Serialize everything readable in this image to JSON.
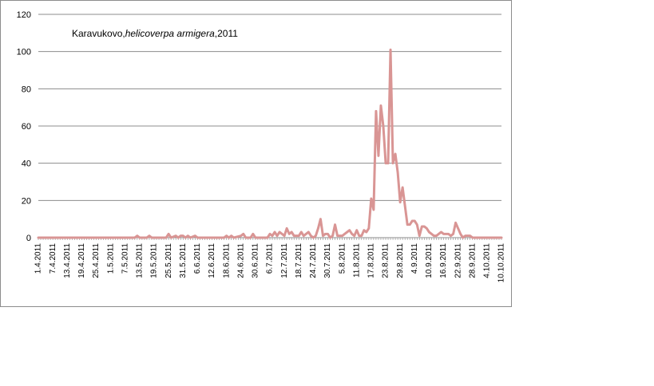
{
  "chart_data": {
    "type": "line",
    "title": {
      "location": "Karavukovo,",
      "species": "helicoverpa armigera",
      "year_suffix": ",2011"
    },
    "xlabel": "",
    "ylabel": "",
    "ylim": [
      0,
      120
    ],
    "yticks": [
      0,
      20,
      40,
      60,
      80,
      100,
      120
    ],
    "grid": true,
    "legend": "none",
    "series_color": "#d99594",
    "x_start": "2011-04-01",
    "x_end": "2011-10-10",
    "x_tick_labels": [
      "1.4.2011",
      "7.4.2011",
      "13.4.2011",
      "19.4.2011",
      "25.4.2011",
      "1.5.2011",
      "7.5.2011",
      "13.5.2011",
      "19.5.2011",
      "25.5.2011",
      "31.5.2011",
      "6.6.2011",
      "12.6.2011",
      "18.6.2011",
      "24.6.2011",
      "30.6.2011",
      "6.7.2011",
      "12.7.2011",
      "18.7.2011",
      "24.7.2011",
      "30.7.2011",
      "5.8.2011",
      "11.8.2011",
      "17.8.2011",
      "23.8.2011",
      "29.8.2011",
      "4.9.2011",
      "10.9.2011",
      "16.9.2011",
      "22.9.2011",
      "28.9.2011",
      "4.10.2011",
      "10.10.2011"
    ],
    "series": [
      {
        "points": [
          [
            "2011-04-01",
            0
          ],
          [
            "2011-05-11",
            0
          ],
          [
            "2011-05-12",
            1
          ],
          [
            "2011-05-13",
            0
          ],
          [
            "2011-05-16",
            0
          ],
          [
            "2011-05-17",
            1
          ],
          [
            "2011-05-18",
            0
          ],
          [
            "2011-05-24",
            0
          ],
          [
            "2011-05-25",
            2
          ],
          [
            "2011-05-26",
            0
          ],
          [
            "2011-05-28",
            1
          ],
          [
            "2011-05-29",
            0
          ],
          [
            "2011-05-30",
            1
          ],
          [
            "2011-05-31",
            1
          ],
          [
            "2011-06-01",
            0
          ],
          [
            "2011-06-02",
            1
          ],
          [
            "2011-06-03",
            0
          ],
          [
            "2011-06-05",
            1
          ],
          [
            "2011-06-06",
            0
          ],
          [
            "2011-06-17",
            0
          ],
          [
            "2011-06-18",
            1
          ],
          [
            "2011-06-19",
            0
          ],
          [
            "2011-06-20",
            1
          ],
          [
            "2011-06-21",
            0
          ],
          [
            "2011-06-24",
            1
          ],
          [
            "2011-06-25",
            2
          ],
          [
            "2011-06-26",
            0
          ],
          [
            "2011-06-28",
            0
          ],
          [
            "2011-06-29",
            2
          ],
          [
            "2011-06-30",
            0
          ],
          [
            "2011-07-05",
            0
          ],
          [
            "2011-07-06",
            2
          ],
          [
            "2011-07-07",
            1
          ],
          [
            "2011-07-08",
            3
          ],
          [
            "2011-07-09",
            1
          ],
          [
            "2011-07-10",
            3
          ],
          [
            "2011-07-11",
            2
          ],
          [
            "2011-07-12",
            1
          ],
          [
            "2011-07-13",
            5
          ],
          [
            "2011-07-14",
            2
          ],
          [
            "2011-07-15",
            3
          ],
          [
            "2011-07-16",
            1
          ],
          [
            "2011-07-17",
            1
          ],
          [
            "2011-07-18",
            1
          ],
          [
            "2011-07-19",
            3
          ],
          [
            "2011-07-20",
            1
          ],
          [
            "2011-07-21",
            2
          ],
          [
            "2011-07-22",
            3
          ],
          [
            "2011-07-23",
            1
          ],
          [
            "2011-07-24",
            0
          ],
          [
            "2011-07-25",
            1
          ],
          [
            "2011-07-26",
            5
          ],
          [
            "2011-07-27",
            10
          ],
          [
            "2011-07-28",
            1
          ],
          [
            "2011-07-29",
            2
          ],
          [
            "2011-07-30",
            2
          ],
          [
            "2011-07-31",
            0
          ],
          [
            "2011-08-01",
            1
          ],
          [
            "2011-08-02",
            7
          ],
          [
            "2011-08-03",
            1
          ],
          [
            "2011-08-04",
            1
          ],
          [
            "2011-08-05",
            1
          ],
          [
            "2011-08-06",
            2
          ],
          [
            "2011-08-07",
            3
          ],
          [
            "2011-08-08",
            4
          ],
          [
            "2011-08-09",
            2
          ],
          [
            "2011-08-10",
            1
          ],
          [
            "2011-08-11",
            4
          ],
          [
            "2011-08-12",
            1
          ],
          [
            "2011-08-13",
            1
          ],
          [
            "2011-08-14",
            4
          ],
          [
            "2011-08-15",
            3
          ],
          [
            "2011-08-16",
            5
          ],
          [
            "2011-08-17",
            21
          ],
          [
            "2011-08-18",
            15
          ],
          [
            "2011-08-19",
            68
          ],
          [
            "2011-08-20",
            44
          ],
          [
            "2011-08-21",
            71
          ],
          [
            "2011-08-22",
            60
          ],
          [
            "2011-08-23",
            40
          ],
          [
            "2011-08-24",
            40
          ],
          [
            "2011-08-25",
            101
          ],
          [
            "2011-08-26",
            40
          ],
          [
            "2011-08-27",
            45
          ],
          [
            "2011-08-28",
            35
          ],
          [
            "2011-08-29",
            19
          ],
          [
            "2011-08-30",
            27
          ],
          [
            "2011-08-31",
            17
          ],
          [
            "2011-09-01",
            7
          ],
          [
            "2011-09-02",
            7
          ],
          [
            "2011-09-03",
            9
          ],
          [
            "2011-09-04",
            9
          ],
          [
            "2011-09-05",
            7
          ],
          [
            "2011-09-06",
            1
          ],
          [
            "2011-09-07",
            6
          ],
          [
            "2011-09-08",
            6
          ],
          [
            "2011-09-09",
            5
          ],
          [
            "2011-09-10",
            3
          ],
          [
            "2011-09-11",
            2
          ],
          [
            "2011-09-12",
            1
          ],
          [
            "2011-09-13",
            1
          ],
          [
            "2011-09-14",
            2
          ],
          [
            "2011-09-15",
            3
          ],
          [
            "2011-09-16",
            2
          ],
          [
            "2011-09-17",
            2
          ],
          [
            "2011-09-18",
            2
          ],
          [
            "2011-09-19",
            1
          ],
          [
            "2011-09-20",
            2
          ],
          [
            "2011-09-21",
            8
          ],
          [
            "2011-09-22",
            5
          ],
          [
            "2011-09-23",
            2
          ],
          [
            "2011-09-24",
            0
          ],
          [
            "2011-09-25",
            1
          ],
          [
            "2011-09-26",
            1
          ],
          [
            "2011-09-27",
            1
          ],
          [
            "2011-09-28",
            0
          ],
          [
            "2011-10-10",
            0
          ]
        ]
      }
    ]
  }
}
